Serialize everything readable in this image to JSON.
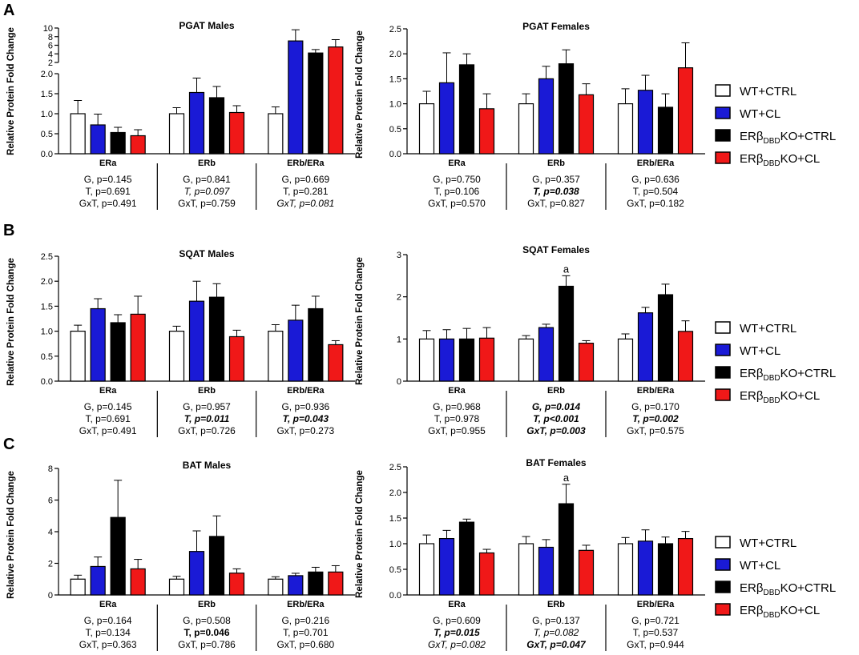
{
  "figure": {
    "ylabel": "Relative Protein Fold Change",
    "groups": [
      "ERa",
      "ERb",
      "ERb/ERa"
    ],
    "legend": [
      {
        "key": "wt_ctrl",
        "pre": "WT+CTRL",
        "sub": "",
        "post": "",
        "fill": "#ffffff"
      },
      {
        "key": "wt_cl",
        "pre": "WT+CL",
        "sub": "",
        "post": "",
        "fill": "#1a1ad6"
      },
      {
        "key": "ko_ctrl",
        "pre": "ERβ",
        "sub": "DBD",
        "post": "KO+CTRL",
        "fill": "#000000"
      },
      {
        "key": "ko_cl",
        "pre": "ERβ",
        "sub": "DBD",
        "post": "KO+CL",
        "fill": "#f01818"
      }
    ],
    "panel_letters": [
      "A",
      "B",
      "C"
    ]
  },
  "chart_data": [
    {
      "type": "bar",
      "title": "PGAT Males",
      "ylabel": "Relative Protein Fold Change",
      "categories": [
        "ERa",
        "ERb",
        "ERb/ERa"
      ],
      "broken_axis": true,
      "ylim_lower": [
        0,
        2.0
      ],
      "yticks_lower": [
        "0.0",
        "0.5",
        "1.0",
        "1.5",
        "2.0"
      ],
      "ylim_upper": [
        2,
        10
      ],
      "yticks_upper": [
        "2",
        "4",
        "6",
        "8",
        "10"
      ],
      "series": [
        {
          "name": "WT+CTRL",
          "values": [
            1.0,
            1.0,
            1.0
          ],
          "errors": [
            0.33,
            0.15,
            0.17
          ]
        },
        {
          "name": "WT+CL",
          "values": [
            0.72,
            1.53,
            7.0
          ],
          "errors": [
            0.27,
            0.36,
            2.6
          ]
        },
        {
          "name": "ERβDBDKO+CTRL",
          "values": [
            0.53,
            1.4,
            4.2
          ],
          "errors": [
            0.13,
            0.28,
            0.8
          ]
        },
        {
          "name": "ERβDBDKO+CL",
          "values": [
            0.45,
            1.03,
            5.6
          ],
          "errors": [
            0.15,
            0.17,
            1.7
          ]
        }
      ],
      "stats": [
        [
          {
            "text": "G, p=0.145",
            "style": "normal"
          },
          {
            "text": "T, p=0.691",
            "style": "normal"
          },
          {
            "text": "GxT, p=0.491",
            "style": "normal"
          }
        ],
        [
          {
            "text": "G, p=0.841",
            "style": "normal"
          },
          {
            "text": "T, p=0.097",
            "style": "italic"
          },
          {
            "text": "GxT, p=0.759",
            "style": "normal"
          }
        ],
        [
          {
            "text": "G, p=0.669",
            "style": "normal"
          },
          {
            "text": "T, p=0.281",
            "style": "normal"
          },
          {
            "text": "GxT, p=0.081",
            "style": "italic"
          }
        ]
      ]
    },
    {
      "type": "bar",
      "title": "PGAT Females",
      "ylabel": "Relative Protein Fold Change",
      "categories": [
        "ERa",
        "ERb",
        "ERb/ERa"
      ],
      "ylim": [
        0,
        2.5
      ],
      "yticks": [
        "0.0",
        "0.5",
        "1.0",
        "1.5",
        "2.0",
        "2.5"
      ],
      "series": [
        {
          "name": "WT+CTRL",
          "values": [
            1.0,
            1.0,
            1.0
          ],
          "errors": [
            0.25,
            0.2,
            0.3
          ]
        },
        {
          "name": "WT+CL",
          "values": [
            1.42,
            1.5,
            1.27
          ],
          "errors": [
            0.6,
            0.25,
            0.3
          ]
        },
        {
          "name": "ERβDBDKO+CTRL",
          "values": [
            1.78,
            1.8,
            0.93
          ],
          "errors": [
            0.22,
            0.28,
            0.27
          ]
        },
        {
          "name": "ERβDBDKO+CL",
          "values": [
            0.9,
            1.18,
            1.72
          ],
          "errors": [
            0.3,
            0.22,
            0.5
          ]
        }
      ],
      "stats": [
        [
          {
            "text": "G, p=0.750",
            "style": "normal"
          },
          {
            "text": "T, p=0.106",
            "style": "normal"
          },
          {
            "text": "GxT, p=0.570",
            "style": "normal"
          }
        ],
        [
          {
            "text": "G, p=0.357",
            "style": "normal"
          },
          {
            "text": "T, p=0.038",
            "style": "bold-italic"
          },
          {
            "text": "GxT, p=0.827",
            "style": "normal"
          }
        ],
        [
          {
            "text": "G, p=0.636",
            "style": "normal"
          },
          {
            "text": "T, p=0.504",
            "style": "normal"
          },
          {
            "text": "GxT, p=0.182",
            "style": "normal"
          }
        ]
      ]
    },
    {
      "type": "bar",
      "title": "SQAT Males",
      "ylabel": "Relative Protein Fold Change",
      "categories": [
        "ERa",
        "ERb",
        "ERb/ERa"
      ],
      "ylim": [
        0,
        2.5
      ],
      "yticks": [
        "0.0",
        "0.5",
        "1.0",
        "1.5",
        "2.0",
        "2.5"
      ],
      "series": [
        {
          "name": "WT+CTRL",
          "values": [
            1.0,
            1.0,
            1.0
          ],
          "errors": [
            0.12,
            0.1,
            0.13
          ]
        },
        {
          "name": "WT+CL",
          "values": [
            1.45,
            1.6,
            1.22
          ],
          "errors": [
            0.2,
            0.4,
            0.3
          ]
        },
        {
          "name": "ERβDBDKO+CTRL",
          "values": [
            1.17,
            1.68,
            1.45
          ],
          "errors": [
            0.16,
            0.27,
            0.25
          ]
        },
        {
          "name": "ERβDBDKO+CL",
          "values": [
            1.34,
            0.89,
            0.73
          ],
          "errors": [
            0.36,
            0.13,
            0.08
          ]
        }
      ],
      "stats": [
        [
          {
            "text": "G, p=0.145",
            "style": "normal"
          },
          {
            "text": "T, p=0.691",
            "style": "normal"
          },
          {
            "text": "GxT, p=0.491",
            "style": "normal"
          }
        ],
        [
          {
            "text": "G, p=0.957",
            "style": "normal"
          },
          {
            "text": "T, p=0.011",
            "style": "bold-italic"
          },
          {
            "text": "GxT, p=0.726",
            "style": "normal"
          }
        ],
        [
          {
            "text": "G, p=0.936",
            "style": "normal"
          },
          {
            "text": "T, p=0.043",
            "style": "bold-italic"
          },
          {
            "text": "GxT, p=0.273",
            "style": "normal"
          }
        ]
      ]
    },
    {
      "type": "bar",
      "title": "SQAT Females",
      "ylabel": "Relative Protein Fold Change",
      "categories": [
        "ERa",
        "ERb",
        "ERb/ERa"
      ],
      "ylim": [
        0,
        3
      ],
      "yticks": [
        "0",
        "1",
        "2",
        "3"
      ],
      "annotations": [
        {
          "category": "ERb",
          "series": "ERβDBDKO+CTRL",
          "text": "a"
        }
      ],
      "series": [
        {
          "name": "WT+CTRL",
          "values": [
            1.0,
            1.0,
            1.0
          ],
          "errors": [
            0.2,
            0.08,
            0.12
          ]
        },
        {
          "name": "WT+CL",
          "values": [
            1.0,
            1.27,
            1.62
          ],
          "errors": [
            0.22,
            0.08,
            0.13
          ]
        },
        {
          "name": "ERβDBDKO+CTRL",
          "values": [
            1.0,
            2.25,
            2.05
          ],
          "errors": [
            0.25,
            0.25,
            0.25
          ]
        },
        {
          "name": "ERβDBDKO+CL",
          "values": [
            1.02,
            0.9,
            1.18
          ],
          "errors": [
            0.25,
            0.06,
            0.25
          ]
        }
      ],
      "stats": [
        [
          {
            "text": "G, p=0.968",
            "style": "normal"
          },
          {
            "text": "T, p=0.978",
            "style": "normal"
          },
          {
            "text": "GxT, p=0.955",
            "style": "normal"
          }
        ],
        [
          {
            "text": "G, p=0.014",
            "style": "bold-italic"
          },
          {
            "text": "T, p<0.001",
            "style": "bold-italic"
          },
          {
            "text": "GxT, p=0.003",
            "style": "bold-italic"
          }
        ],
        [
          {
            "text": "G, p=0.170",
            "style": "normal"
          },
          {
            "text": "T, p=0.002",
            "style": "bold-italic"
          },
          {
            "text": "GxT, p=0.575",
            "style": "normal"
          }
        ]
      ]
    },
    {
      "type": "bar",
      "title": "BAT Males",
      "ylabel": "Relative Protein Fold Change",
      "categories": [
        "ERa",
        "ERb",
        "ERb/ERa"
      ],
      "ylim": [
        0,
        8
      ],
      "yticks": [
        "0",
        "2",
        "4",
        "6",
        "8"
      ],
      "series": [
        {
          "name": "WT+CTRL",
          "values": [
            1.0,
            1.0,
            1.0
          ],
          "errors": [
            0.25,
            0.18,
            0.15
          ]
        },
        {
          "name": "WT+CL",
          "values": [
            1.8,
            2.75,
            1.22
          ],
          "errors": [
            0.6,
            1.3,
            0.15
          ]
        },
        {
          "name": "ERβDBDKO+CTRL",
          "values": [
            4.9,
            3.7,
            1.45
          ],
          "errors": [
            2.35,
            1.3,
            0.3
          ]
        },
        {
          "name": "ERβDBDKO+CL",
          "values": [
            1.65,
            1.38,
            1.45
          ],
          "errors": [
            0.6,
            0.27,
            0.4
          ]
        }
      ],
      "stats": [
        [
          {
            "text": "G, p=0.164",
            "style": "normal"
          },
          {
            "text": "T, p=0.134",
            "style": "normal"
          },
          {
            "text": "GxT, p=0.363",
            "style": "normal"
          }
        ],
        [
          {
            "text": "G, p=0.508",
            "style": "normal"
          },
          {
            "text": "T, p=0.046",
            "style": "bold"
          },
          {
            "text": "GxT, p=0.786",
            "style": "normal"
          }
        ],
        [
          {
            "text": "G, p=0.216",
            "style": "normal"
          },
          {
            "text": "T, p=0.701",
            "style": "normal"
          },
          {
            "text": "GxT, p=0.680",
            "style": "normal"
          }
        ]
      ]
    },
    {
      "type": "bar",
      "title": "BAT Females",
      "ylabel": "Relative Protein Fold Change",
      "categories": [
        "ERa",
        "ERb",
        "ERb/ERa"
      ],
      "ylim": [
        0,
        2.5
      ],
      "yticks": [
        "0.0",
        "0.5",
        "1.0",
        "1.5",
        "2.0",
        "2.5"
      ],
      "annotations": [
        {
          "category": "ERb",
          "series": "ERβDBDKO+CTRL",
          "text": "a"
        }
      ],
      "series": [
        {
          "name": "WT+CTRL",
          "values": [
            1.0,
            1.0,
            1.0
          ],
          "errors": [
            0.17,
            0.14,
            0.12
          ]
        },
        {
          "name": "WT+CL",
          "values": [
            1.1,
            0.93,
            1.05
          ],
          "errors": [
            0.16,
            0.15,
            0.22
          ]
        },
        {
          "name": "ERβDBDKO+CTRL",
          "values": [
            1.42,
            1.78,
            1.0
          ],
          "errors": [
            0.06,
            0.38,
            0.13
          ]
        },
        {
          "name": "ERβDBDKO+CL",
          "values": [
            0.82,
            0.87,
            1.1
          ],
          "errors": [
            0.07,
            0.1,
            0.14
          ]
        }
      ],
      "stats": [
        [
          {
            "text": "G, p=0.609",
            "style": "normal"
          },
          {
            "text": "T, p=0.015",
            "style": "bold-italic"
          },
          {
            "text": "GxT, p=0.082",
            "style": "italic"
          }
        ],
        [
          {
            "text": "G, p=0.137",
            "style": "normal"
          },
          {
            "text": "T, p=0.082",
            "style": "italic"
          },
          {
            "text": "GxT, p=0.047",
            "style": "bold-italic"
          }
        ],
        [
          {
            "text": "G, p=0.721",
            "style": "normal"
          },
          {
            "text": "T, p=0.537",
            "style": "normal"
          },
          {
            "text": "GxT, p=0.944",
            "style": "normal"
          }
        ]
      ]
    }
  ]
}
